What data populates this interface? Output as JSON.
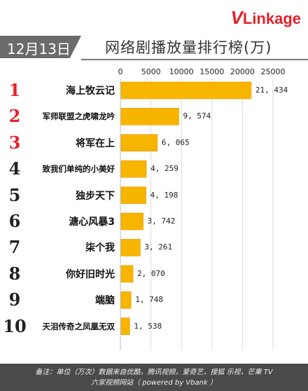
{
  "logo": {
    "v": "V",
    "rest": "Linkage"
  },
  "date": "12月13日",
  "title": "网络剧播放量排行榜(万)",
  "footer": {
    "line1": "备注：单位（万次）数据来自优酷，腾讯视频，爱奇艺，搜狐 乐视，芒果 TV",
    "line2": "六家视频网站（ powered by Vbank ）"
  },
  "colors": {
    "bar": "#f7b500",
    "bar_edge": "#e39b00",
    "grid": "#dcdcdc",
    "rank_top": "#e5202a"
  },
  "chart_data": {
    "type": "bar",
    "orientation": "horizontal",
    "xlim": [
      0,
      25000
    ],
    "ticks": [
      0,
      5000,
      10000,
      15000,
      20000,
      25000
    ],
    "tick_labels": [
      "0",
      "5000",
      "10000",
      "15000",
      "20000",
      "25000"
    ],
    "grid": true,
    "ranks": [
      "1",
      "2",
      "3",
      "4",
      "5",
      "6",
      "7",
      "8",
      "9",
      "10"
    ],
    "categories": [
      "海上牧云记",
      "军师联盟之虎啸龙吟",
      "将军在上",
      "致我们单纯的小美好",
      "独步天下",
      "溏心风暴3",
      "柒个我",
      "你好旧时光",
      "端脑",
      "天泪传奇之凤凰无双"
    ],
    "values": [
      21434,
      9574,
      6065,
      4259,
      4198,
      3742,
      3261,
      2070,
      1748,
      1538
    ],
    "value_labels": [
      "21, 434",
      "9, 574",
      "6, 065",
      "4, 259",
      "4, 198",
      "3, 742",
      "3, 261",
      "2, 070",
      "1, 748",
      "1, 538"
    ]
  }
}
